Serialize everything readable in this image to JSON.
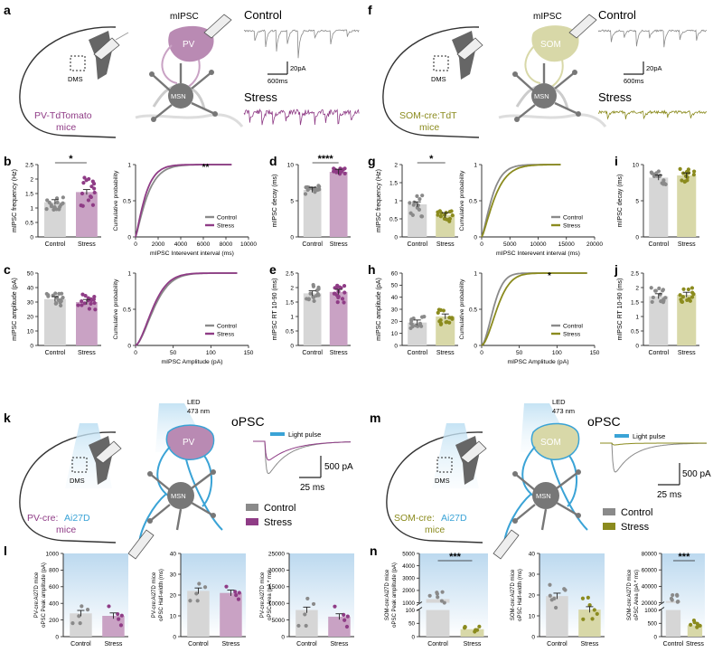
{
  "colors": {
    "pv": "#8f3c86",
    "pv_light": "#c9a2c4",
    "som": "#8b8b1e",
    "som_light": "#d8d8a8",
    "control": "#8a8a8a",
    "control_light": "#d6d6d6",
    "led_blue": "#3aa3d6"
  },
  "panels": {
    "a": {
      "label": "a",
      "title": "mIPSC",
      "cell": "PV",
      "neuron": "MSN",
      "region": "DMS",
      "mouse_line": [
        "PV-TdTomato",
        "mice"
      ],
      "control": "Control",
      "stress": "Stress",
      "scale_y": "20pA",
      "scale_x": "600ms"
    },
    "f": {
      "label": "f",
      "title": "mIPSC",
      "cell": "SOM",
      "neuron": "MSN",
      "region": "DMS",
      "mouse_line": [
        "SOM-cre:TdT",
        "mice"
      ],
      "control": "Control",
      "stress": "Stress",
      "scale_y": "20pA",
      "scale_x": "600ms"
    },
    "k": {
      "label": "k",
      "led": [
        "LED",
        "473 nm"
      ],
      "cell": "PV",
      "neuron": "MSN",
      "region": "DMS",
      "mouse_line": [
        "PV-cre:",
        "Ai27D",
        "mice"
      ],
      "title": "oPSC",
      "light_pulse": "Light pulse",
      "scale_y": "500 pA",
      "scale_x": "25 ms",
      "legend": [
        "Control",
        "Stress"
      ]
    },
    "m": {
      "label": "m",
      "led": [
        "LED",
        "473 nm"
      ],
      "cell": "SOM",
      "neuron": "MSN",
      "region": "DMS",
      "mouse_line": [
        "SOM-cre:",
        "Ai27D",
        "mice"
      ],
      "title": "oPSC",
      "light_pulse": "Light pulse",
      "scale_y": "500 pA",
      "scale_x": "25 ms",
      "legend": [
        "Control",
        "Stress"
      ]
    }
  },
  "chart_data": [
    {
      "id": "b",
      "type": "bar",
      "ylabel": "mIPSC frequency (Hz)",
      "categories": [
        "Control",
        "Stress"
      ],
      "values": [
        1.2,
        1.55
      ],
      "ylim": [
        0,
        2.5
      ],
      "yticks": [
        0,
        0.5,
        1.0,
        1.5,
        2.0,
        2.5
      ],
      "significance": "*"
    },
    {
      "id": "b-cum",
      "type": "line",
      "xlabel": "mIPSC Interevent interval (ms)",
      "ylabel": "Cumulative probability",
      "xlim": [
        0,
        10000
      ],
      "xticks": [
        0,
        2000,
        4000,
        6000,
        8000,
        10000
      ],
      "ylim": [
        0,
        1
      ],
      "yticks": [
        0,
        0.5,
        1.0
      ],
      "series": [
        {
          "name": "Control"
        },
        {
          "name": "Stress"
        }
      ],
      "significance": "**"
    },
    {
      "id": "c",
      "type": "bar",
      "ylabel": "mIPSC amplitude (pA)",
      "categories": [
        "Control",
        "Stress"
      ],
      "values": [
        32,
        30
      ],
      "ylim": [
        0,
        50
      ],
      "yticks": [
        0,
        10,
        20,
        30,
        40,
        50
      ]
    },
    {
      "id": "c-cum",
      "type": "line",
      "xlabel": "mIPSC Amplitude (pA)",
      "ylabel": "Cumulative probability",
      "xlim": [
        0,
        150
      ],
      "xticks": [
        0,
        50,
        100,
        150
      ],
      "ylim": [
        0,
        1
      ],
      "yticks": [
        0,
        0.5,
        1.0
      ],
      "series": [
        {
          "name": "Control"
        },
        {
          "name": "Stress"
        }
      ]
    },
    {
      "id": "d",
      "type": "bar",
      "ylabel": "mIPSC decay (ms)",
      "categories": [
        "Control",
        "Stress"
      ],
      "values": [
        6.5,
        9
      ],
      "ylim": [
        0,
        10
      ],
      "yticks": [
        0,
        5,
        10
      ],
      "significance": "****"
    },
    {
      "id": "e",
      "type": "bar",
      "ylabel": "mIPSC RT 10-90 (ms)",
      "categories": [
        "Control",
        "Stress"
      ],
      "values": [
        1.8,
        1.85
      ],
      "ylim": [
        0,
        2.5
      ],
      "yticks": [
        0,
        0.5,
        1.0,
        1.5,
        2.0,
        2.5
      ]
    },
    {
      "id": "g",
      "type": "bar",
      "ylabel": "mIPSC frequency (Hz)",
      "categories": [
        "Control",
        "Stress"
      ],
      "values": [
        0.9,
        0.6
      ],
      "ylim": [
        0,
        2.0
      ],
      "yticks": [
        0,
        0.5,
        1.0,
        1.5,
        2.0
      ],
      "significance": "*"
    },
    {
      "id": "g-cum",
      "type": "line",
      "xlabel": "mIPSC Interevent interval (ms)",
      "ylabel": "Cumulative probability",
      "xlim": [
        0,
        20000
      ],
      "xticks": [
        0,
        5000,
        10000,
        15000,
        20000
      ],
      "ylim": [
        0,
        1
      ],
      "yticks": [
        0,
        0.5,
        1.0
      ],
      "series": [
        {
          "name": "Control"
        },
        {
          "name": "Stress"
        }
      ]
    },
    {
      "id": "h",
      "type": "bar",
      "ylabel": "mIPSC amplitude (pA)",
      "categories": [
        "Control",
        "Stress"
      ],
      "values": [
        19,
        24
      ],
      "ylim": [
        0,
        60
      ],
      "yticks": [
        0,
        10,
        20,
        30,
        40,
        50,
        60
      ]
    },
    {
      "id": "h-cum",
      "type": "line",
      "xlabel": "mIPSC Amplitude (pA)",
      "ylabel": "Cumulative probability",
      "xlim": [
        0,
        150
      ],
      "xticks": [
        0,
        50,
        100,
        150
      ],
      "ylim": [
        0,
        1
      ],
      "yticks": [
        0,
        0.5,
        1.0
      ],
      "series": [
        {
          "name": "Control"
        },
        {
          "name": "Stress"
        }
      ],
      "significance": "*"
    },
    {
      "id": "i",
      "type": "bar",
      "ylabel": "mIPSC decay (ms)",
      "categories": [
        "Control",
        "Stress"
      ],
      "values": [
        8.2,
        8.5
      ],
      "ylim": [
        0,
        10
      ],
      "yticks": [
        0,
        5,
        10
      ]
    },
    {
      "id": "j",
      "type": "bar",
      "ylabel": "mIPSC RT 10-90 (ms)",
      "categories": [
        "Control",
        "Stress"
      ],
      "values": [
        1.7,
        1.75
      ],
      "ylim": [
        0,
        2.5
      ],
      "yticks": [
        0,
        0.5,
        1.0,
        1.5,
        2.0,
        2.5
      ]
    },
    {
      "id": "l1",
      "type": "bar",
      "ylabel": [
        "PV-cre:Ai27D mice",
        "oPSC Peak amplitude (pA)"
      ],
      "categories": [
        "Control",
        "Stress"
      ],
      "values": [
        280,
        250
      ],
      "ylim": [
        0,
        1000
      ],
      "yticks": [
        0,
        200,
        400,
        600,
        800,
        1000
      ]
    },
    {
      "id": "l2",
      "type": "bar",
      "ylabel": [
        "PV-cre:Ai27D mice",
        "oPSC Half-width (ms)"
      ],
      "categories": [
        "Control",
        "Stress"
      ],
      "values": [
        22,
        21
      ],
      "ylim": [
        0,
        40
      ],
      "yticks": [
        0,
        10,
        20,
        30,
        40
      ]
    },
    {
      "id": "l3",
      "type": "bar",
      "ylabel": [
        "PV-cre:Ai27D mice",
        "oPSC Area (pA * ms)"
      ],
      "categories": [
        "Control",
        "Stress"
      ],
      "values": [
        8000,
        6000
      ],
      "ylim": [
        0,
        25000
      ],
      "yticks": [
        0,
        5000,
        10000,
        15000,
        20000,
        25000
      ]
    },
    {
      "id": "n1",
      "type": "bar",
      "ylabel": [
        "SOM-cre:Ai27D mice",
        "oPSC Peak amplitude (pA)"
      ],
      "categories": [
        "Control",
        "Stress"
      ],
      "values": [
        1300,
        28
      ],
      "yticks": [
        0,
        50,
        100,
        1000,
        2000,
        3000,
        4000,
        5000
      ],
      "significance": "***"
    },
    {
      "id": "n2",
      "type": "bar",
      "ylabel": [
        "SOM-cre:Ai27D mice",
        "oPSC Half-width (ms)"
      ],
      "categories": [
        "Control",
        "Stress"
      ],
      "values": [
        19.5,
        13
      ],
      "ylim": [
        0,
        40
      ],
      "yticks": [
        0,
        10,
        20,
        30,
        40
      ]
    },
    {
      "id": "n3",
      "type": "bar",
      "ylabel": [
        "SOM-cre:Ai27D mice",
        "oPSC Area (pA * ms)"
      ],
      "categories": [
        "Control",
        "Stress"
      ],
      "values": [
        22000,
        430
      ],
      "yticks": [
        0,
        500,
        1000,
        20000,
        40000,
        60000,
        80000
      ],
      "significance": "***"
    }
  ]
}
